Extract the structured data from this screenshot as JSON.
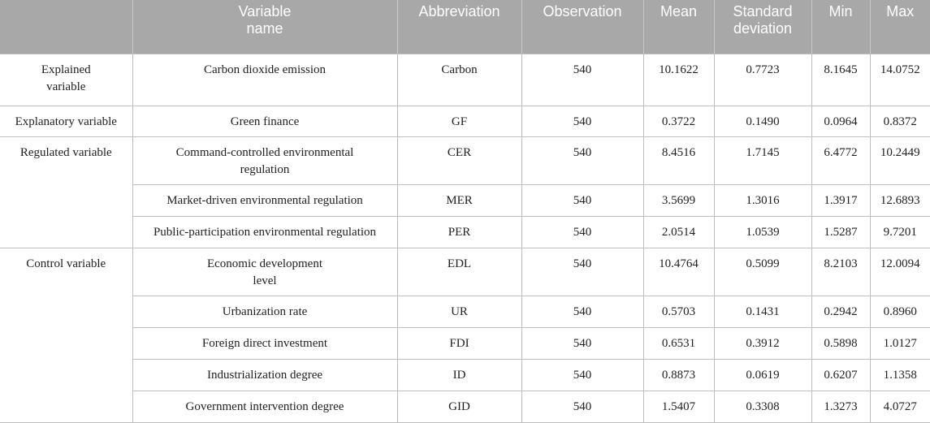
{
  "headers": [
    "Variable name",
    "Abbreviation",
    "Observation",
    "Mean",
    "Standard deviation",
    "Min",
    "Max"
  ],
  "categories": {
    "explained": "Explained variable",
    "explanatory": "Explanatory variable",
    "regulated": "Regulated variable",
    "control": "Control variable"
  },
  "rows": [
    {
      "name": "Carbon dioxide emission",
      "abbr": "Carbon",
      "obs": "540",
      "mean": "10.1622",
      "sd": "0.7723",
      "min": "8.1645",
      "max": "14.0752"
    },
    {
      "name": "Green finance",
      "abbr": "GF",
      "obs": "540",
      "mean": "0.3722",
      "sd": "0.1490",
      "min": "0.0964",
      "max": "0.8372"
    },
    {
      "name": "Command-controlled environmental regulation",
      "abbr": "CER",
      "obs": "540",
      "mean": "8.4516",
      "sd": "1.7145",
      "min": "6.4772",
      "max": "10.2449"
    },
    {
      "name": "Market-driven environmental regulation",
      "abbr": "MER",
      "obs": "540",
      "mean": "3.5699",
      "sd": "1.3016",
      "min": "1.3917",
      "max": "12.6893"
    },
    {
      "name": "Public-participation environmental regulation",
      "abbr": "PER",
      "obs": "540",
      "mean": "2.0514",
      "sd": "1.0539",
      "min": "1.5287",
      "max": "9.7201"
    },
    {
      "name": "Economic development level",
      "abbr": "EDL",
      "obs": "540",
      "mean": "10.4764",
      "sd": "0.5099",
      "min": "8.2103",
      "max": "12.0094"
    },
    {
      "name": "Urbanization rate",
      "abbr": "UR",
      "obs": "540",
      "mean": "0.5703",
      "sd": "0.1431",
      "min": "0.2942",
      "max": "0.8960"
    },
    {
      "name": "Foreign direct investment",
      "abbr": "FDI",
      "obs": "540",
      "mean": "0.6531",
      "sd": "0.3912",
      "min": "0.5898",
      "max": "1.0127"
    },
    {
      "name": "Industrialization degree",
      "abbr": "ID",
      "obs": "540",
      "mean": "0.8873",
      "sd": "0.0619",
      "min": "0.6207",
      "max": "1.1358"
    },
    {
      "name": "Government intervention degree",
      "abbr": "GID",
      "obs": "540",
      "mean": "1.5407",
      "sd": "0.3308",
      "min": "1.3273",
      "max": "4.0727"
    }
  ]
}
